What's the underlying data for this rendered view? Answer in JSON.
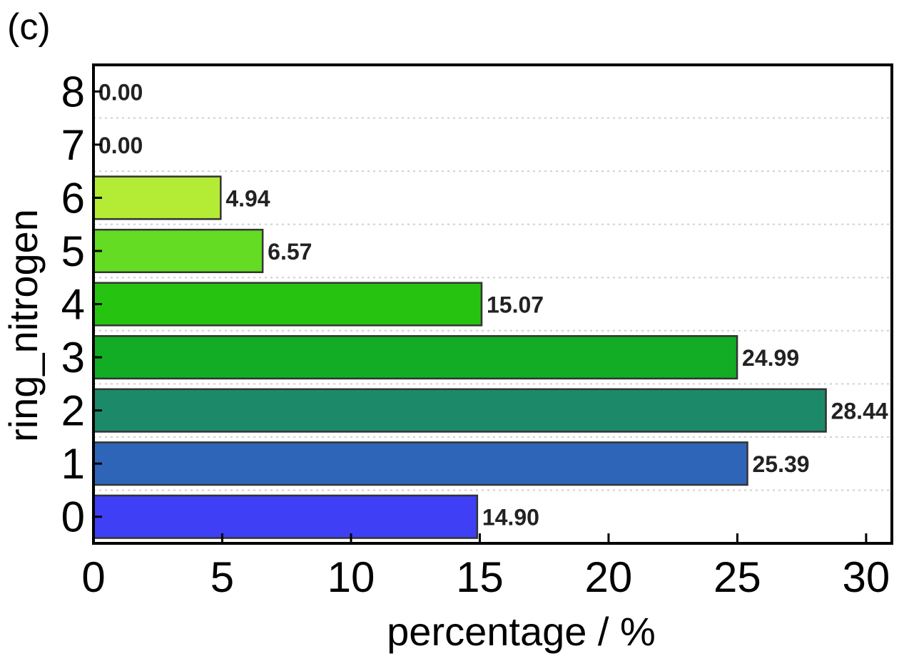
{
  "panel_label": "(c)",
  "chart_data": {
    "type": "bar",
    "orientation": "horizontal",
    "title": "",
    "xlabel": "percentage / %",
    "ylabel": "ring_nitrogen",
    "categories": [
      "0",
      "1",
      "2",
      "3",
      "4",
      "5",
      "6",
      "7",
      "8"
    ],
    "values": [
      14.9,
      25.39,
      28.44,
      24.99,
      15.07,
      6.57,
      4.94,
      0.0,
      0.0
    ],
    "data_labels": [
      "14.90",
      "25.39",
      "28.44",
      "24.99",
      "15.07",
      "6.57",
      "4.94",
      "0.00",
      "0.00"
    ],
    "bar_colors": [
      "#3f3ff5",
      "#2f65b8",
      "#1c8a68",
      "#12ad25",
      "#26c410",
      "#63dc23",
      "#b4ec35",
      "#b4ec35",
      "#b4ec35"
    ],
    "xlim": [
      0,
      31
    ],
    "xticks": [
      0,
      5,
      10,
      15,
      20,
      25,
      30
    ],
    "xtick_labels": [
      "0",
      "5",
      "10",
      "15",
      "20",
      "25",
      "30"
    ],
    "grid": "horizontal-dotted",
    "legend": "none"
  }
}
